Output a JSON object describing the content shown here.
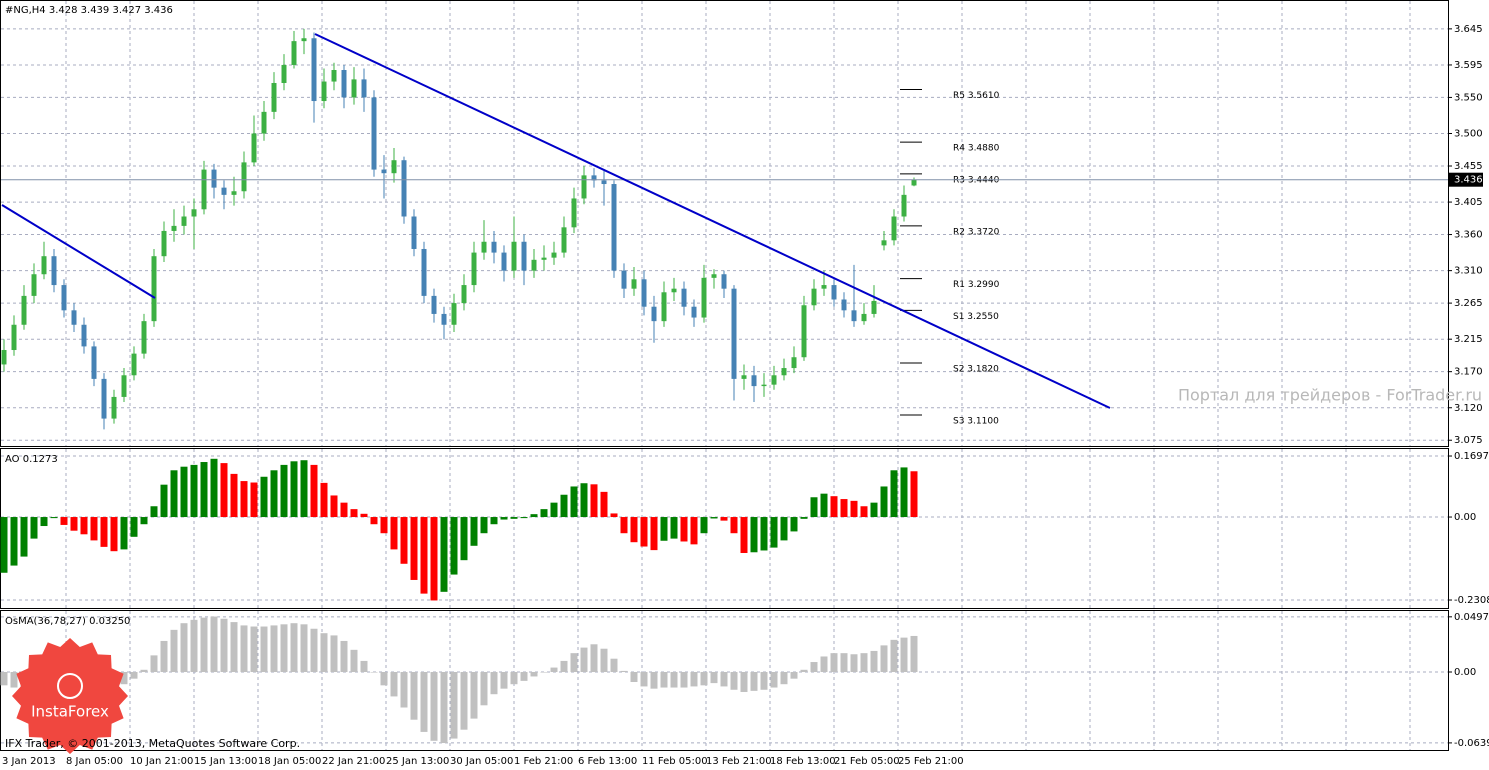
{
  "chart_data": [
    {
      "type": "candlestick",
      "title": "#NG,H4  3.428 3.439 3.427 3.436",
      "ohlc": [
        [
          3.18,
          3.215,
          3.17,
          3.2
        ],
        [
          3.2,
          3.248,
          3.192,
          3.235
        ],
        [
          3.235,
          3.29,
          3.228,
          3.275
        ],
        [
          3.275,
          3.32,
          3.265,
          3.305
        ],
        [
          3.305,
          3.35,
          3.298,
          3.33
        ],
        [
          3.33,
          3.34,
          3.28,
          3.29
        ],
        [
          3.29,
          3.298,
          3.245,
          3.255
        ],
        [
          3.255,
          3.265,
          3.225,
          3.235
        ],
        [
          3.235,
          3.245,
          3.195,
          3.205
        ],
        [
          3.205,
          3.212,
          3.15,
          3.16
        ],
        [
          3.16,
          3.168,
          3.09,
          3.105
        ],
        [
          3.105,
          3.145,
          3.098,
          3.135
        ],
        [
          3.135,
          3.175,
          3.128,
          3.165
        ],
        [
          3.165,
          3.205,
          3.158,
          3.195
        ],
        [
          3.195,
          3.25,
          3.188,
          3.24
        ],
        [
          3.24,
          3.34,
          3.232,
          3.33
        ],
        [
          3.33,
          3.378,
          3.322,
          3.365
        ],
        [
          3.365,
          3.395,
          3.35,
          3.372
        ],
        [
          3.372,
          3.4,
          3.36,
          3.385
        ],
        [
          3.385,
          3.41,
          3.34,
          3.395
        ],
        [
          3.395,
          3.462,
          3.388,
          3.45
        ],
        [
          3.45,
          3.458,
          3.41,
          3.425
        ],
        [
          3.425,
          3.435,
          3.395,
          3.415
        ],
        [
          3.415,
          3.44,
          3.4,
          3.42
        ],
        [
          3.42,
          3.475,
          3.41,
          3.46
        ],
        [
          3.46,
          3.525,
          3.455,
          3.5
        ],
        [
          3.5,
          3.545,
          3.49,
          3.53
        ],
        [
          3.53,
          3.585,
          3.52,
          3.57
        ],
        [
          3.57,
          3.61,
          3.56,
          3.595
        ],
        [
          3.595,
          3.642,
          3.59,
          3.628
        ],
        [
          3.628,
          3.645,
          3.61,
          3.632
        ],
        [
          3.632,
          3.64,
          3.515,
          3.545
        ],
        [
          3.545,
          3.59,
          3.535,
          3.572
        ],
        [
          3.572,
          3.598,
          3.56,
          3.588
        ],
        [
          3.588,
          3.595,
          3.535,
          3.55
        ],
        [
          3.55,
          3.592,
          3.54,
          3.575
        ],
        [
          3.575,
          3.59,
          3.53,
          3.55
        ],
        [
          3.55,
          3.56,
          3.44,
          3.45
        ],
        [
          3.45,
          3.47,
          3.41,
          3.445
        ],
        [
          3.445,
          3.48,
          3.432,
          3.463
        ],
        [
          3.463,
          3.468,
          3.375,
          3.385
        ],
        [
          3.385,
          3.395,
          3.33,
          3.34
        ],
        [
          3.34,
          3.35,
          3.265,
          3.275
        ],
        [
          3.275,
          3.285,
          3.238,
          3.25
        ],
        [
          3.25,
          3.26,
          3.215,
          3.235
        ],
        [
          3.235,
          3.278,
          3.225,
          3.265
        ],
        [
          3.265,
          3.305,
          3.255,
          3.29
        ],
        [
          3.29,
          3.35,
          3.28,
          3.335
        ],
        [
          3.335,
          3.38,
          3.325,
          3.35
        ],
        [
          3.35,
          3.365,
          3.32,
          3.335
        ],
        [
          3.335,
          3.345,
          3.295,
          3.31
        ],
        [
          3.31,
          3.385,
          3.3,
          3.35
        ],
        [
          3.35,
          3.36,
          3.29,
          3.31
        ],
        [
          3.31,
          3.34,
          3.3,
          3.325
        ],
        [
          3.325,
          3.345,
          3.31,
          3.328
        ],
        [
          3.328,
          3.35,
          3.318,
          3.335
        ],
        [
          3.335,
          3.385,
          3.328,
          3.37
        ],
        [
          3.37,
          3.425,
          3.362,
          3.41
        ],
        [
          3.41,
          3.455,
          3.402,
          3.442
        ],
        [
          3.442,
          3.452,
          3.425,
          3.435
        ],
        [
          3.435,
          3.448,
          3.4,
          3.43
        ],
        [
          3.43,
          3.435,
          3.3,
          3.31
        ],
        [
          3.31,
          3.32,
          3.272,
          3.285
        ],
        [
          3.285,
          3.315,
          3.275,
          3.298
        ],
        [
          3.298,
          3.31,
          3.248,
          3.26
        ],
        [
          3.26,
          3.275,
          3.21,
          3.24
        ],
        [
          3.24,
          3.295,
          3.232,
          3.28
        ],
        [
          3.28,
          3.3,
          3.268,
          3.285
        ],
        [
          3.285,
          3.295,
          3.248,
          3.26
        ],
        [
          3.26,
          3.27,
          3.232,
          3.245
        ],
        [
          3.245,
          3.318,
          3.238,
          3.3
        ],
        [
          3.3,
          3.312,
          3.285,
          3.305
        ],
        [
          3.305,
          3.31,
          3.272,
          3.285
        ],
        [
          3.285,
          3.29,
          3.13,
          3.16
        ],
        [
          3.16,
          3.18,
          3.145,
          3.165
        ],
        [
          3.165,
          3.178,
          3.128,
          3.15
        ],
        [
          3.15,
          3.168,
          3.135,
          3.152
        ],
        [
          3.152,
          3.178,
          3.145,
          3.165
        ],
        [
          3.165,
          3.188,
          3.158,
          3.175
        ],
        [
          3.175,
          3.205,
          3.168,
          3.19
        ],
        [
          3.19,
          3.275,
          3.185,
          3.262
        ],
        [
          3.262,
          3.298,
          3.255,
          3.285
        ],
        [
          3.285,
          3.31,
          3.275,
          3.29
        ],
        [
          3.29,
          3.298,
          3.26,
          3.27
        ],
        [
          3.27,
          3.28,
          3.245,
          3.255
        ],
        [
          3.255,
          3.318,
          3.232,
          3.24
        ],
        [
          3.24,
          3.265,
          3.235,
          3.25
        ],
        [
          3.25,
          3.29,
          3.245,
          3.268
        ],
        [
          3.345,
          3.365,
          3.338,
          3.352
        ],
        [
          3.352,
          3.395,
          3.345,
          3.385
        ],
        [
          3.385,
          3.428,
          3.378,
          3.415
        ],
        [
          3.428,
          3.439,
          3.427,
          3.436
        ]
      ],
      "up_color": "#3cb043",
      "down_color": "#4682b4",
      "ylim": [
        3.067,
        3.685
      ],
      "yticks": [
        3.645,
        3.595,
        {
          "value": 3.55,
          "label": "3.550"
        },
        {
          "value": 3.5,
          "label": "3.500"
        },
        3.455,
        3.405,
        {
          "value": 3.36,
          "label": "3.360"
        },
        {
          "value": 3.31,
          "label": "3.310"
        },
        3.265,
        3.215,
        {
          "value": 3.17,
          "label": "3.170"
        },
        {
          "value": 3.12,
          "label": "3.120"
        },
        3.075
      ],
      "grid": true,
      "last_price": 3.436,
      "pivots": [
        {
          "label": "R5 3.5610",
          "value": 3.561
        },
        {
          "label": "R4 3.4880",
          "value": 3.488
        },
        {
          "label": "R3 3.4440",
          "value": 3.444
        },
        {
          "label": "R2 3.3720",
          "value": 3.372
        },
        {
          "label": "R1 3.2990",
          "value": 3.299
        },
        {
          "label": "S1 3.2550",
          "value": 3.255
        },
        {
          "label": "S2 3.1820",
          "value": 3.182
        },
        {
          "label": "S3 3.1100",
          "value": 3.11
        }
      ],
      "xticks": [
        "3 Jan 2013",
        "8 Jan 05:00",
        "10 Jan 21:00",
        "15 Jan 13:00",
        "18 Jan 05:00",
        "22 Jan 21:00",
        "25 Jan 13:00",
        "30 Jan 05:00",
        "1 Feb 21:00",
        "6 Feb 13:00",
        "11 Feb 05:00",
        "13 Feb 21:00",
        "18 Feb 13:00",
        "21 Feb 05:00",
        "25 Feb 21:00"
      ],
      "watermark": "Портал для трейдеров - ForTrader.ru",
      "footer": "IFX Trader, © 2001-2013, MetaQuotes Software Corp.",
      "logo": "InstaForex"
    },
    {
      "type": "bar",
      "title": "AO 0.1273",
      "values": [
        -0.155,
        -0.135,
        -0.11,
        -0.06,
        -0.025,
        -0.003,
        -0.022,
        -0.038,
        -0.048,
        -0.065,
        -0.083,
        -0.095,
        -0.09,
        -0.055,
        -0.02,
        0.03,
        0.09,
        0.13,
        0.14,
        0.145,
        0.153,
        0.162,
        0.15,
        0.12,
        0.1,
        0.096,
        0.112,
        0.13,
        0.145,
        0.155,
        0.158,
        0.145,
        0.095,
        0.06,
        0.04,
        0.022,
        0.009,
        -0.02,
        -0.045,
        -0.09,
        -0.13,
        -0.175,
        -0.213,
        -0.232,
        -0.208,
        -0.16,
        -0.12,
        -0.08,
        -0.045,
        -0.02,
        -0.007,
        -0.005,
        -0.003,
        0.008,
        0.022,
        0.04,
        0.062,
        0.085,
        0.094,
        0.091,
        0.07,
        0.01,
        -0.045,
        -0.07,
        -0.082,
        -0.092,
        -0.066,
        -0.06,
        -0.068,
        -0.076,
        -0.045,
        -0.004,
        -0.01,
        -0.045,
        -0.1,
        -0.098,
        -0.093,
        -0.085,
        -0.065,
        -0.04,
        -0.005,
        0.055,
        0.065,
        0.058,
        0.05,
        0.045,
        0.03,
        0.04,
        0.085,
        0.13,
        0.138,
        0.1273
      ],
      "up_color": "#008000",
      "down_color": "#ff0000",
      "ylim": [
        -0.253,
        0.192
      ],
      "yticks": [
        0.1697,
        {
          "value": 0,
          "label": "0.00"
        },
        -0.2308
      ],
      "grid": true
    },
    {
      "type": "bar",
      "title": "OsMA(36,78,27) 0.03250",
      "values": [
        -0.012,
        -0.014,
        -0.015,
        -0.014,
        -0.012,
        -0.011,
        -0.011,
        -0.012,
        -0.013,
        -0.013,
        -0.014,
        -0.014,
        -0.011,
        -0.006,
        0.002,
        0.015,
        0.028,
        0.038,
        0.044,
        0.047,
        0.049,
        0.05,
        0.048,
        0.045,
        0.042,
        0.041,
        0.041,
        0.042,
        0.043,
        0.044,
        0.043,
        0.039,
        0.035,
        0.033,
        0.028,
        0.02,
        0.01,
        0.0,
        -0.012,
        -0.022,
        -0.032,
        -0.043,
        -0.054,
        -0.062,
        -0.064,
        -0.06,
        -0.052,
        -0.042,
        -0.03,
        -0.02,
        -0.015,
        -0.011,
        -0.008,
        -0.004,
        0.0,
        0.004,
        0.01,
        0.017,
        0.022,
        0.025,
        0.021,
        0.012,
        0.001,
        -0.009,
        -0.013,
        -0.015,
        -0.014,
        -0.014,
        -0.014,
        -0.013,
        -0.012,
        -0.01,
        -0.013,
        -0.016,
        -0.018,
        -0.017,
        -0.016,
        -0.014,
        -0.011,
        -0.006,
        0.002,
        0.009,
        0.014,
        0.017,
        0.017,
        0.016,
        0.017,
        0.019,
        0.024,
        0.029,
        0.031,
        0.0325
      ],
      "color": "#c0c0c0",
      "ylim": [
        -0.0703,
        0.0559
      ],
      "yticks": [
        0.04975,
        {
          "value": 0,
          "label": "0.00"
        },
        -0.0639
      ],
      "grid": true
    }
  ]
}
